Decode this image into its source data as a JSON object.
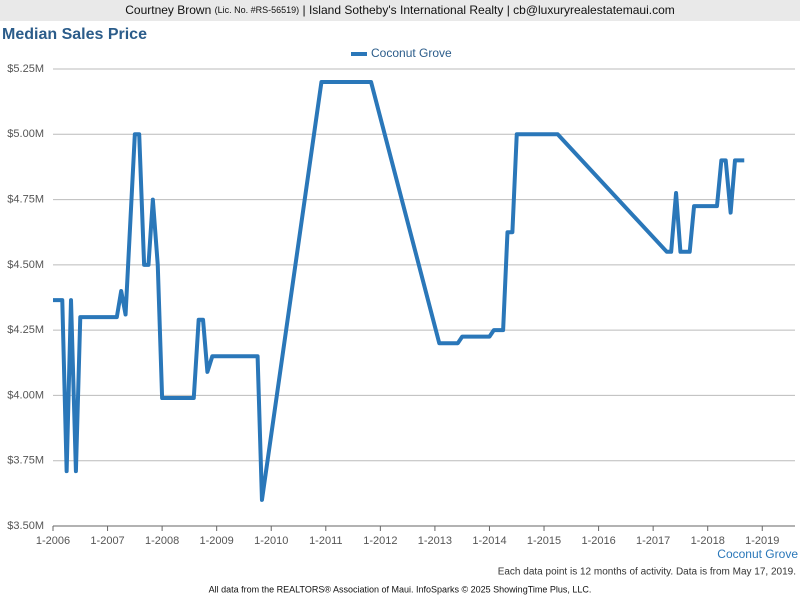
{
  "header": {
    "name": "Courtney Brown",
    "license": "(Lic. No. #RS-56519)",
    "rest": "| Island Sotheby's International Realty | cb@luxuryrealestatemaui.com"
  },
  "chart_data": {
    "type": "line",
    "title": "Median Sales Price",
    "x": [
      2006.0,
      2006.17,
      2006.25,
      2006.33,
      2006.42,
      2006.5,
      2007.17,
      2007.25,
      2007.33,
      2007.5,
      2007.58,
      2007.67,
      2007.75,
      2007.83,
      2007.92,
      2008.0,
      2008.58,
      2008.67,
      2008.75,
      2008.83,
      2008.92,
      2009.75,
      2009.83,
      2010.92,
      2011.83,
      2013.08,
      2013.42,
      2013.5,
      2014.0,
      2014.08,
      2014.25,
      2014.33,
      2014.42,
      2014.5,
      2015.25,
      2017.25,
      2017.33,
      2017.42,
      2017.5,
      2017.67,
      2017.75,
      2018.17,
      2018.25,
      2018.33,
      2018.42,
      2018.5,
      2018.67
    ],
    "series": [
      {
        "name": "Coconut Grove",
        "color": "#2a77b9",
        "values": [
          4365000,
          4365000,
          3710000,
          4365000,
          3710000,
          4300000,
          4300000,
          4400000,
          4310000,
          5000000,
          5000000,
          4500000,
          4500000,
          4750000,
          4500000,
          3990000,
          3990000,
          4290000,
          4290000,
          4090000,
          4150000,
          4150000,
          3600000,
          5200000,
          5200000,
          4200000,
          4200000,
          4225000,
          4225000,
          4250000,
          4250000,
          4625000,
          4625000,
          5000000,
          5000000,
          4550000,
          4550000,
          4775000,
          4550000,
          4550000,
          4725000,
          4725000,
          4900000,
          4900000,
          4700000,
          4900000,
          4900000
        ]
      }
    ],
    "xlim": [
      2006,
      2019.6
    ],
    "xticks": [
      {
        "value": 2006,
        "label": "1-2006"
      },
      {
        "value": 2007,
        "label": "1-2007"
      },
      {
        "value": 2008,
        "label": "1-2008"
      },
      {
        "value": 2009,
        "label": "1-2009"
      },
      {
        "value": 2010,
        "label": "1-2010"
      },
      {
        "value": 2011,
        "label": "1-2011"
      },
      {
        "value": 2012,
        "label": "1-2012"
      },
      {
        "value": 2013,
        "label": "1-2013"
      },
      {
        "value": 2014,
        "label": "1-2014"
      },
      {
        "value": 2015,
        "label": "1-2015"
      },
      {
        "value": 2016,
        "label": "1-2016"
      },
      {
        "value": 2017,
        "label": "1-2017"
      },
      {
        "value": 2018,
        "label": "1-2018"
      },
      {
        "value": 2019,
        "label": "1-2019"
      }
    ],
    "ylim": [
      3500000,
      5250000
    ],
    "yticks": [
      {
        "value": 3500000,
        "label": "$3.50M"
      },
      {
        "value": 3750000,
        "label": "$3.75M"
      },
      {
        "value": 4000000,
        "label": "$4.00M"
      },
      {
        "value": 4250000,
        "label": "$4.25M"
      },
      {
        "value": 4500000,
        "label": "$4.50M"
      },
      {
        "value": 4750000,
        "label": "$4.75M"
      },
      {
        "value": 5000000,
        "label": "$5.00M"
      },
      {
        "value": 5250000,
        "label": "$5.25M"
      }
    ],
    "grid": true,
    "legend": "top",
    "note": "Each data point is 12 months of activity. Data is from May 17, 2019.",
    "source": "All data from the REALTORS® Association of Maui. InfoSparks © 2025 ShowingTime Plus, LLC."
  }
}
